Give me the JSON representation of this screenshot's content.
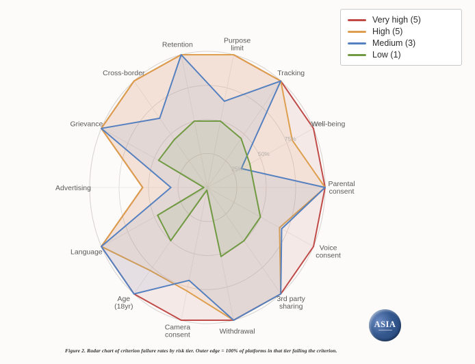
{
  "figure": {
    "caption": "Figure 2. Radar chart of criterion failure rates by risk tier. Outer edge = 100% of platforms in that tier failing the criterion.",
    "logo_text": "ASIA"
  },
  "chart_data": {
    "type": "radar",
    "rmax": 100,
    "grid_levels": [
      25,
      50,
      75,
      100
    ],
    "radial_tick_labels": [
      "25%",
      "50%",
      "75%",
      "100%"
    ],
    "tick_axis_angle_deg": 25.714,
    "axes": [
      "Parental\nconsent",
      "Well-being",
      "Tracking",
      "Purpose\nlimit",
      "Retention",
      "Cross-border",
      "Grievance",
      "Advertising",
      "Language",
      "Age\n(18yr)",
      "Camera\nconsent",
      "Withdrawal",
      "3rd party\nsharing",
      "Voice\nconsent"
    ],
    "series": [
      {
        "name": "Very high (5)",
        "color": "#bf4a47",
        "values": [
          100,
          100,
          100,
          100,
          100,
          100,
          100,
          55,
          100,
          100,
          100,
          100,
          100,
          100
        ]
      },
      {
        "name": "High (5)",
        "color": "#dd9f4d",
        "values": [
          100,
          80,
          100,
          100,
          100,
          100,
          100,
          55,
          100,
          78,
          78,
          100,
          100,
          68
        ]
      },
      {
        "name": "Medium (3)",
        "color": "#5580c0",
        "values": [
          100,
          32,
          100,
          65,
          100,
          65,
          100,
          31,
          100,
          100,
          70,
          100,
          100,
          70
        ]
      },
      {
        "name": "Low (1)",
        "color": "#6f9a41",
        "values": [
          40,
          40,
          46,
          50,
          50,
          45,
          46,
          3,
          47,
          50,
          2,
          52,
          50,
          50
        ]
      }
    ],
    "legend_position": "top-right",
    "grid_color": "#d8d4d0",
    "spoke_color": "#eae6e2",
    "axis_label_color": "#5a5a5a",
    "tick_label_color": "#b3aeaa"
  }
}
